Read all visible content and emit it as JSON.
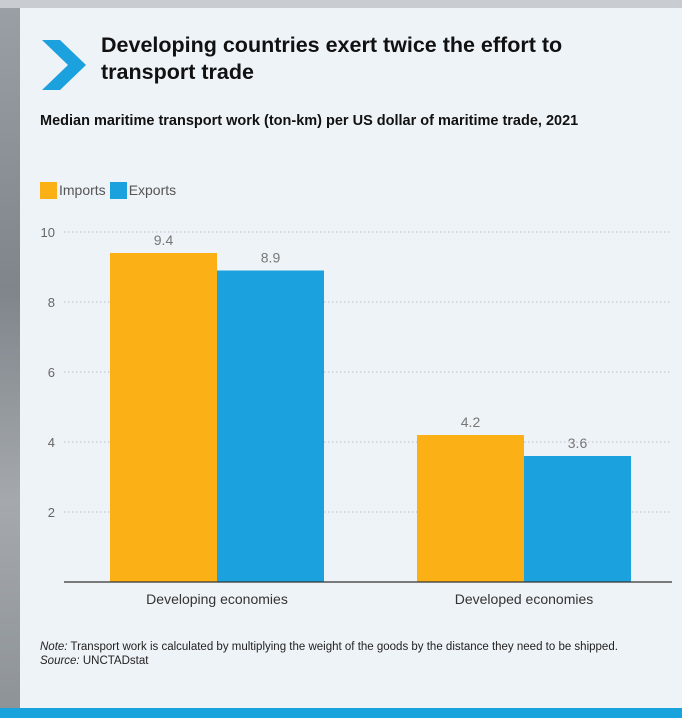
{
  "header": {
    "title": "Developing countries exert twice the effort to transport trade",
    "subtitle": "Median maritime transport work (ton-km) per US dollar of maritime trade, 2021",
    "icon": "chevron-right-icon"
  },
  "colors": {
    "imports": "#FBB016",
    "exports": "#1BA1DE",
    "accent": "#1BA1DE"
  },
  "chart_data": {
    "type": "bar",
    "title": "Developing countries exert twice the effort to transport trade",
    "subtitle": "Median maritime transport work (ton-km) per US dollar of maritime trade, 2021",
    "categories": [
      "Developing economies",
      "Developed economies"
    ],
    "series": [
      {
        "name": "Imports",
        "values": [
          9.4,
          4.2
        ],
        "labels": [
          "9.4",
          "4.2"
        ]
      },
      {
        "name": "Exports",
        "values": [
          8.9,
          3.6
        ],
        "labels": [
          "8.9",
          "3.6"
        ]
      }
    ],
    "yticks": [
      "2",
      "4",
      "6",
      "8",
      "10"
    ],
    "ylim": [
      0,
      10
    ],
    "xlabel": "",
    "ylabel": "",
    "grid": true,
    "legend_position": "top-left"
  },
  "notes": {
    "note_label": "Note:",
    "note_text": " Transport work is calculated by multiplying the weight of the goods by the distance they need to be shipped.",
    "source_label": "Source:",
    "source_text": " UNCTADstat"
  }
}
